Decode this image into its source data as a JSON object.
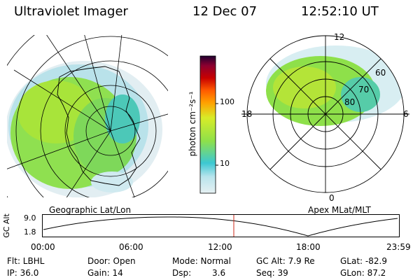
{
  "header": {
    "title": "Ultraviolet Imager",
    "date": "12 Dec 07",
    "time": "12:52:10 UT"
  },
  "left_panel": {
    "caption": "Geographic Lat/Lon"
  },
  "right_panel": {
    "caption": "Apex MLat/MLT",
    "mlt_labels": {
      "top": "12",
      "left": "18",
      "right": "6",
      "bottom": "0"
    },
    "mlat_labels": [
      "60",
      "70",
      "80"
    ]
  },
  "colorbar": {
    "unit": "photon cm⁻²s⁻¹",
    "ticks": [
      "100",
      "10"
    ],
    "scale": "log",
    "colors": [
      "#e6f0f2",
      "#b8e4ec",
      "#3cc8d2",
      "#8ee04a",
      "#d8ec28",
      "#ffa000",
      "#ff5a00",
      "#c80000",
      "#8c0030",
      "#200030"
    ]
  },
  "altitude_plot": {
    "ylabel": "GC Alt",
    "yticks": [
      "9.0",
      "1.8"
    ],
    "xticks": [
      "00:00",
      "06:00",
      "12:00",
      "18:00",
      "23:59"
    ],
    "current_time_hours": 12.87
  },
  "footer": {
    "row1": {
      "flt": "Flt: LBHL",
      "door": "Door: Open",
      "mode": "Mode: Normal",
      "gcalt": "GC Alt: 7.9 Re",
      "glat": "GLat: -82.9"
    },
    "row2": {
      "ip": "IP: 36.0",
      "gain": "Gain: 14",
      "dsp_label": "Dsp:",
      "dsp_value": "3.6",
      "seq": "Seq: 39",
      "glon": "GLon: 87.2"
    }
  }
}
